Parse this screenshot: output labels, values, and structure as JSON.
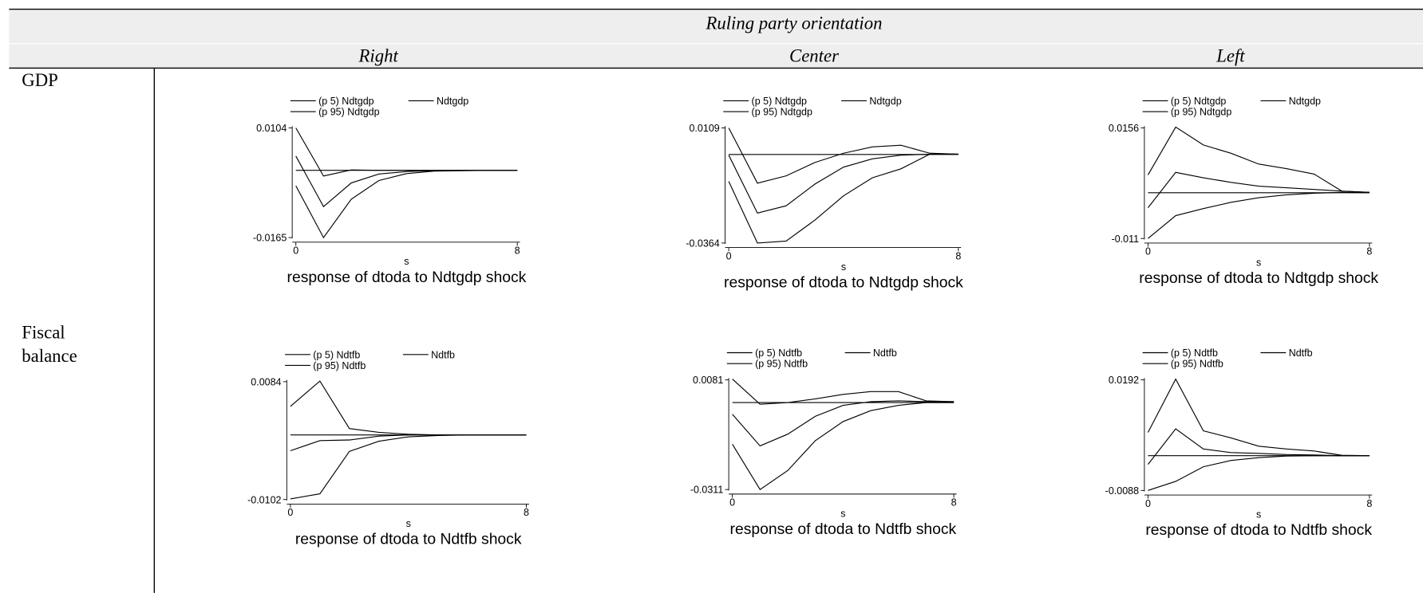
{
  "table": {
    "title": "Ruling party orientation",
    "columns": [
      "Right",
      "Center",
      "Left"
    ],
    "rows": [
      "GDP",
      "Fiscal balance"
    ]
  },
  "chart_data": [
    {
      "type": "line",
      "title": "response of dtoda to Ndtgdp shock",
      "xlabel": "s",
      "x": [
        0,
        1,
        2,
        3,
        4,
        5,
        6,
        7,
        8
      ],
      "xlim": [
        0,
        8
      ],
      "xticks": [
        0,
        8
      ],
      "ylim": [
        -0.0165,
        0.0104
      ],
      "yticks": [
        -0.0165,
        0.0104
      ],
      "hline": 0,
      "series": [
        {
          "name": "(p 5) Ndtgdp",
          "color": "#000000",
          "values": [
            -0.0038,
            -0.0165,
            -0.0071,
            -0.0025,
            -0.0008,
            -0.0002,
            -0.0001,
            0,
            0
          ]
        },
        {
          "name": "Ndtgdp",
          "color": "#000000",
          "values": [
            0.0035,
            -0.0089,
            -0.0031,
            -0.0009,
            -0.0003,
            -0.0001,
            0,
            0,
            0
          ]
        },
        {
          "name": "(p 95) Ndtgdp",
          "color": "#000000",
          "values": [
            0.0104,
            -0.0014,
            0.0001,
            0,
            0,
            0,
            0,
            0,
            0
          ]
        }
      ]
    },
    {
      "type": "line",
      "title": "response of dtoda to Ndtgdp shock",
      "xlabel": "s",
      "x": [
        0,
        1,
        2,
        3,
        4,
        5,
        6,
        7,
        8
      ],
      "xlim": [
        0,
        8
      ],
      "xticks": [
        0,
        8
      ],
      "ylim": [
        -0.0364,
        0.0109
      ],
      "yticks": [
        -0.0364,
        0.0109
      ],
      "hline": 0,
      "series": [
        {
          "name": "(p 5) Ndtgdp",
          "color": "#000000",
          "values": [
            -0.0111,
            -0.0364,
            -0.0356,
            -0.027,
            -0.017,
            -0.0096,
            -0.0059,
            0.0001,
            0.0001
          ]
        },
        {
          "name": "Ndtgdp",
          "color": "#000000",
          "values": [
            -0.0003,
            -0.0241,
            -0.0211,
            -0.0122,
            -0.0052,
            -0.0018,
            -0.0003,
            0.0001,
            0.0001
          ]
        },
        {
          "name": "(p 95) Ndtgdp",
          "color": "#000000",
          "values": [
            0.0109,
            -0.0118,
            -0.0088,
            -0.0033,
            0.0005,
            0.0031,
            0.0038,
            0.0005,
            0.0001
          ]
        }
      ]
    },
    {
      "type": "line",
      "title": "response of dtoda to Ndtgdp shock",
      "xlabel": "s",
      "x": [
        0,
        1,
        2,
        3,
        4,
        5,
        6,
        7,
        8
      ],
      "xlim": [
        0,
        8
      ],
      "xticks": [
        0,
        8
      ],
      "ylim": [
        -0.011,
        0.0156
      ],
      "yticks": [
        -0.011,
        0.0156
      ],
      "hline": 0,
      "series": [
        {
          "name": "(p 5) Ndtgdp",
          "color": "#000000",
          "values": [
            -0.011,
            -0.0055,
            -0.0038,
            -0.0023,
            -0.0012,
            -0.0005,
            -0.0001,
            0.0001,
            0
          ]
        },
        {
          "name": "Ndtgdp",
          "color": "#000000",
          "values": [
            -0.0036,
            0.0049,
            0.0036,
            0.0025,
            0.0016,
            0.0012,
            0.0008,
            0.0004,
            0.0001
          ]
        },
        {
          "name": "(p 95) Ndtgdp",
          "color": "#000000",
          "values": [
            0.0043,
            0.0158,
            0.0115,
            0.0095,
            0.0069,
            0.0058,
            0.0045,
            0.0004,
            0.0001
          ]
        }
      ]
    },
    {
      "type": "line",
      "title": "response of dtoda to Ndtfb shock",
      "xlabel": "s",
      "x": [
        0,
        1,
        2,
        3,
        4,
        5,
        6,
        7,
        8
      ],
      "xlim": [
        0,
        8
      ],
      "xticks": [
        0,
        8
      ],
      "ylim": [
        -0.0102,
        0.0084
      ],
      "yticks": [
        -0.0102,
        0.0084
      ],
      "hline": 0,
      "series": [
        {
          "name": "(p 5) Ndtfb",
          "color": "#000000",
          "values": [
            -0.0101,
            -0.0093,
            -0.0026,
            -0.001,
            -0.0003,
            -0.0001,
            0,
            0,
            0
          ]
        },
        {
          "name": "Ndtfb",
          "color": "#000000",
          "values": [
            -0.0025,
            -0.0009,
            -0.0008,
            -0.0002,
            0,
            0,
            0,
            0,
            0
          ]
        },
        {
          "name": "(p 95) Ndtfb",
          "color": "#000000",
          "values": [
            0.0045,
            0.0085,
            0.001,
            0.0004,
            0.0001,
            0,
            0,
            0,
            0
          ]
        }
      ]
    },
    {
      "type": "line",
      "title": "response of dtoda to Ndtfb shock",
      "xlabel": "s",
      "x": [
        0,
        1,
        2,
        3,
        4,
        5,
        6,
        7,
        8
      ],
      "xlim": [
        0,
        8
      ],
      "xticks": [
        0,
        8
      ],
      "ylim": [
        -0.0311,
        0.0081
      ],
      "yticks": [
        -0.0311,
        0.0081
      ],
      "hline": 0,
      "series": [
        {
          "name": "(p 5) Ndtfb",
          "color": "#000000",
          "values": [
            -0.0149,
            -0.0311,
            -0.0243,
            -0.0136,
            -0.0068,
            -0.0029,
            -0.001,
            0,
            0
          ]
        },
        {
          "name": "Ndtfb",
          "color": "#000000",
          "values": [
            -0.0042,
            -0.0155,
            -0.0113,
            -0.0049,
            -0.001,
            0.0003,
            0.0006,
            0.0003,
            0.0003
          ]
        },
        {
          "name": "(p 95) Ndtfb",
          "color": "#000000",
          "values": [
            0.0084,
            -0.0006,
            0,
            0.0013,
            0.0029,
            0.0039,
            0.0039,
            0.0006,
            0.0003
          ]
        }
      ]
    },
    {
      "type": "line",
      "title": "response of dtoda to Ndtfb shock",
      "xlabel": "s",
      "x": [
        0,
        1,
        2,
        3,
        4,
        5,
        6,
        7,
        8
      ],
      "xlim": [
        0,
        8
      ],
      "xticks": [
        0,
        8
      ],
      "ylim": [
        -0.0088,
        0.0192
      ],
      "yticks": [
        -0.0088,
        0.0192
      ],
      "hline": 0,
      "series": [
        {
          "name": "(p 5) Ndtfb",
          "color": "#000000",
          "values": [
            -0.0088,
            -0.0065,
            -0.0028,
            -0.0012,
            -0.0005,
            -0.0001,
            0,
            0,
            0
          ]
        },
        {
          "name": "Ndtfb",
          "color": "#000000",
          "values": [
            -0.0022,
            0.0068,
            0.0017,
            0.0008,
            0.0006,
            0.0003,
            0.0002,
            0,
            0
          ]
        },
        {
          "name": "(p 95) Ndtfb",
          "color": "#000000",
          "values": [
            0.0059,
            0.0194,
            0.0063,
            0.0045,
            0.0024,
            0.0017,
            0.0012,
            0.0001,
            0
          ]
        }
      ]
    }
  ]
}
